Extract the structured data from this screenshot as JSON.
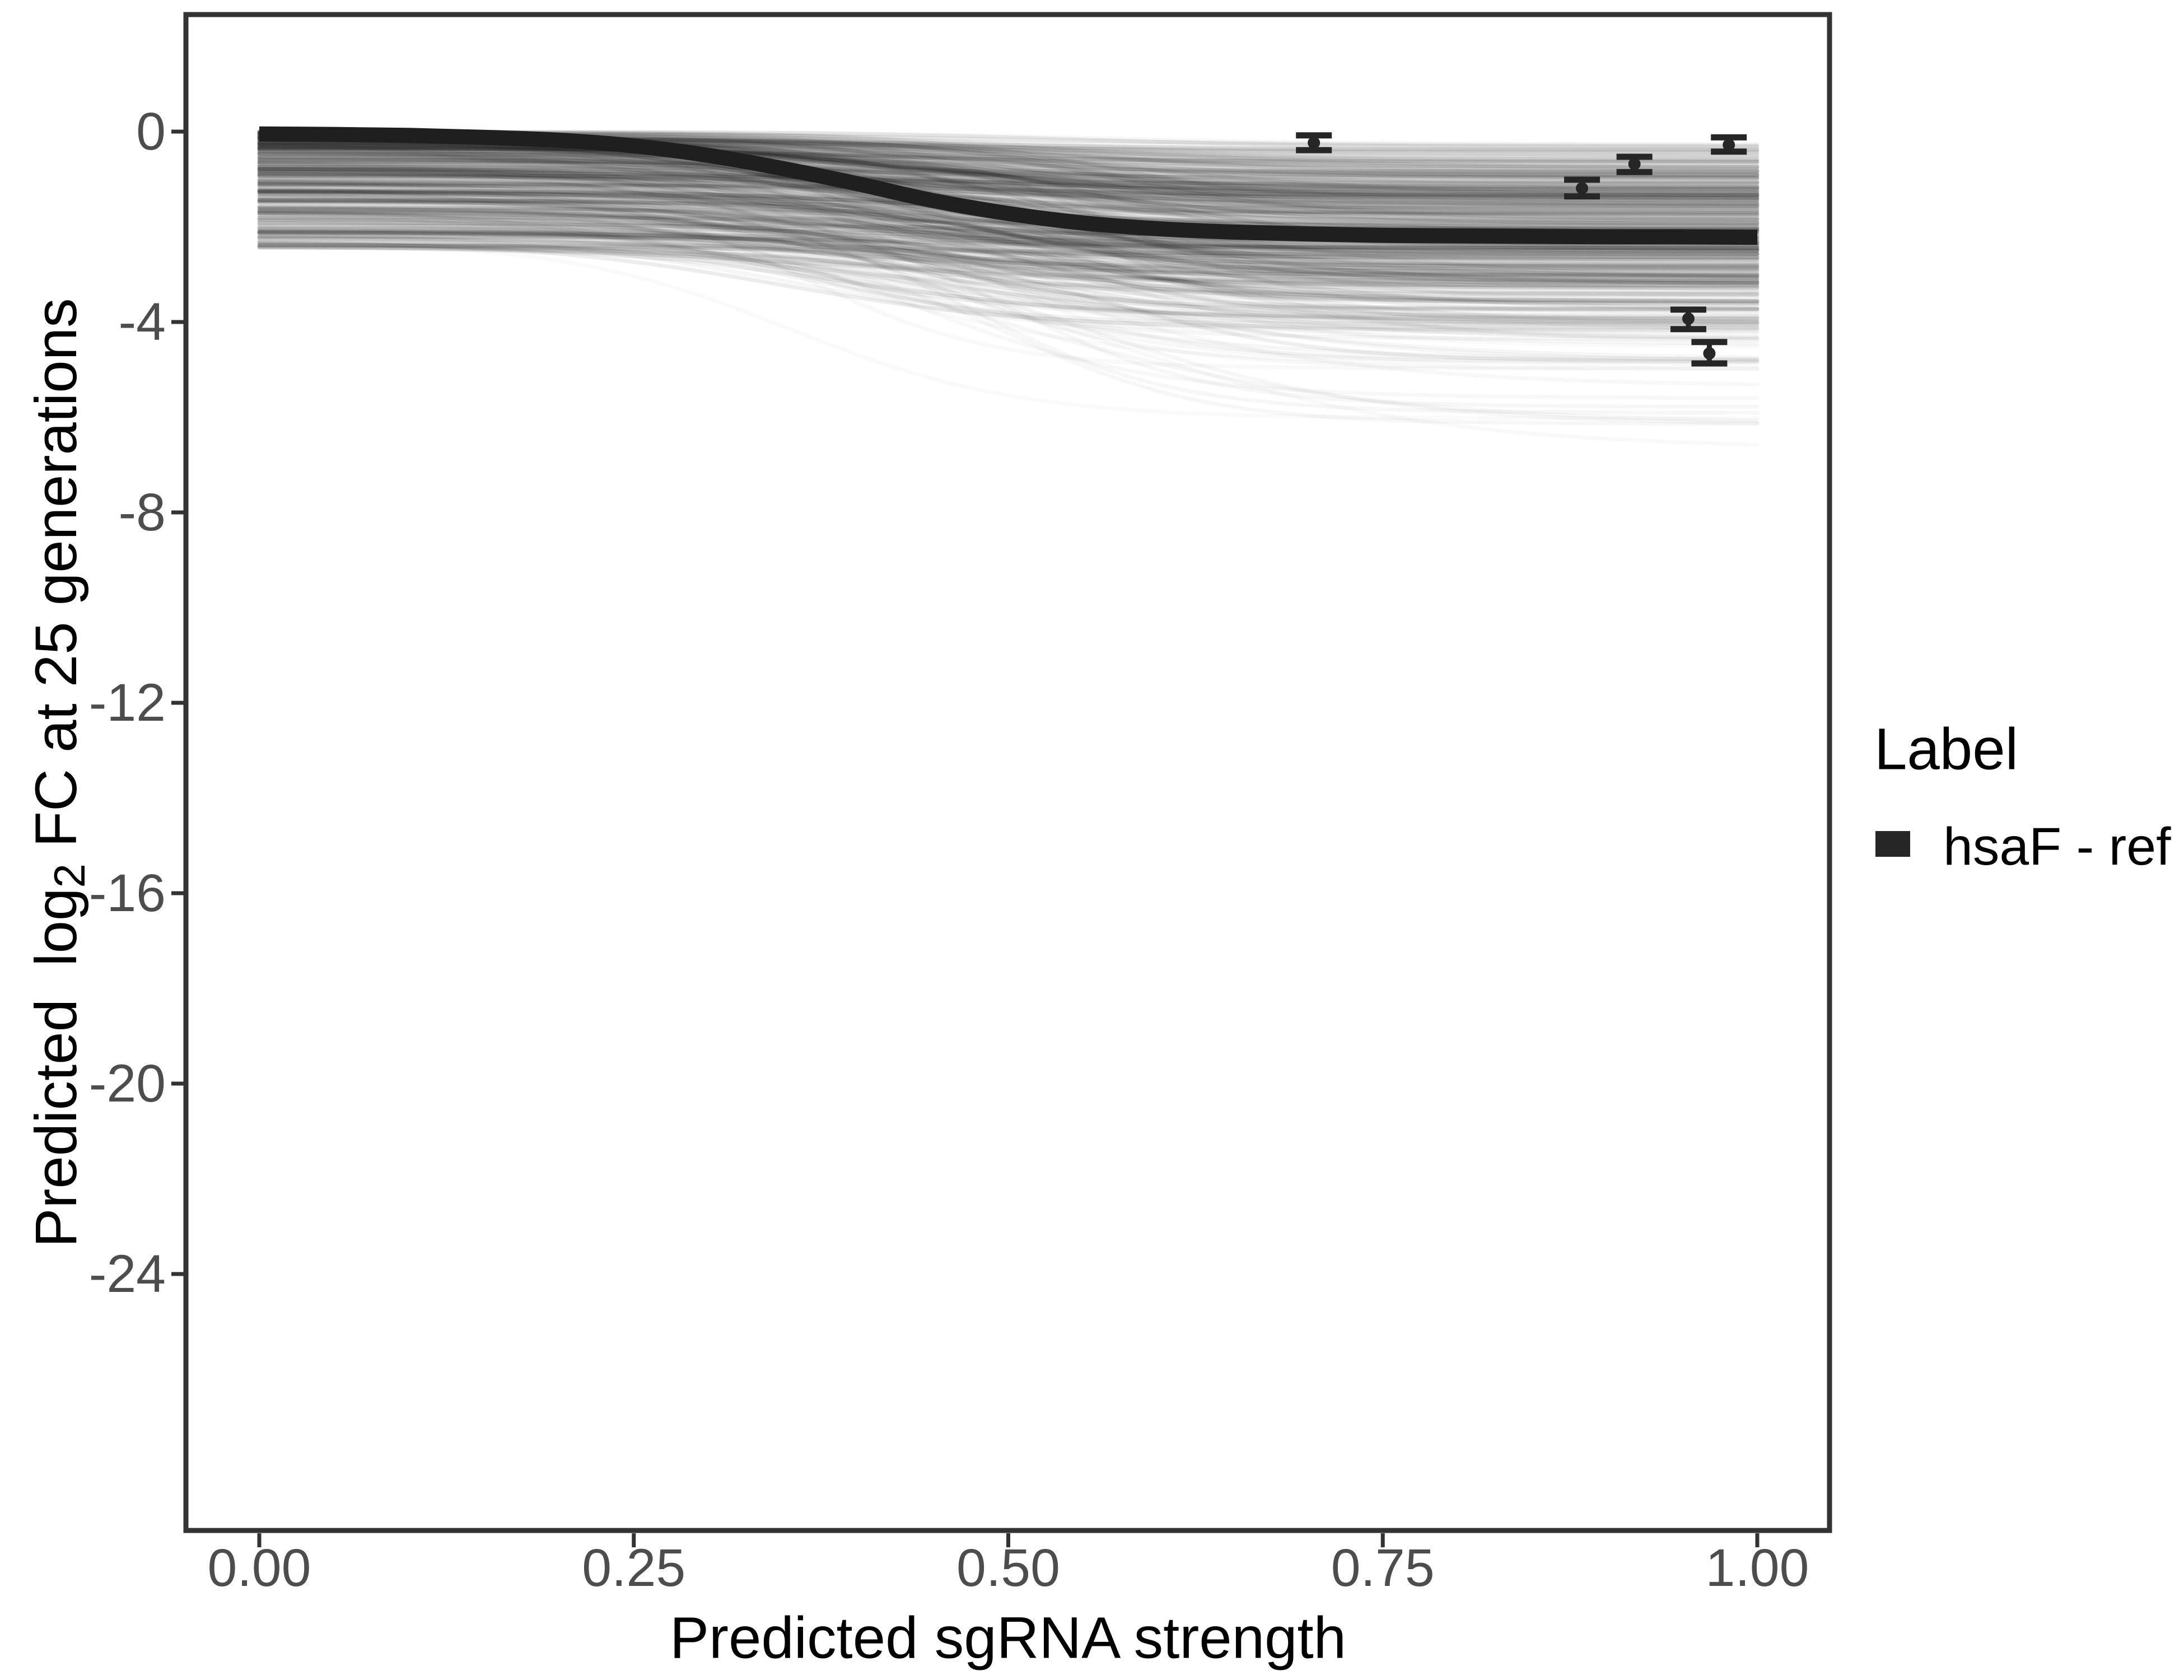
{
  "figure": {
    "background": "#ffffff"
  },
  "axes": {
    "x": {
      "title": "Predicted sgRNA strength",
      "range": [
        0,
        1
      ],
      "ticks": [
        {
          "label": "0.00",
          "value": 0.0
        },
        {
          "label": "0.25",
          "value": 0.25
        },
        {
          "label": "0.50",
          "value": 0.5
        },
        {
          "label": "0.75",
          "value": 0.75
        },
        {
          "label": "1.00",
          "value": 1.0
        }
      ]
    },
    "y": {
      "title_pre": "Predicted  log",
      "title_sub": "2",
      "title_post": " FC at 25 generations",
      "range": [
        2.6,
        -29.4
      ],
      "ticks": [
        {
          "label": "0",
          "value": 0
        },
        {
          "label": "-4",
          "value": -4
        },
        {
          "label": "-8",
          "value": -8
        },
        {
          "label": "-12",
          "value": -12
        },
        {
          "label": "-16",
          "value": -16
        },
        {
          "label": "-20",
          "value": -20
        },
        {
          "label": "-24",
          "value": -24
        }
      ]
    }
  },
  "legend": {
    "title": "Label",
    "items": [
      {
        "label": "hsaF - ref",
        "swatch_color": "#262626"
      }
    ]
  },
  "colors": {
    "panel_border": "#333333",
    "tick_mark": "#333333",
    "tick_text": "#4d4d4d",
    "axis_title": "#000000",
    "main_curve": "#1f1f1f",
    "ensemble_stroke": "#000000",
    "point_color": "#262626"
  },
  "chart_data": {
    "type": "line",
    "title": "",
    "xlabel": "Predicted sgRNA strength",
    "ylabel": "Predicted log2 FC at 25 generations",
    "xlim": [
      0,
      1
    ],
    "ylim": [
      -29.4,
      2.6
    ],
    "grid": "off",
    "legend_position": "right",
    "main_curve": {
      "name": "hsaF - ref",
      "points": [
        [
          0.0,
          -0.05
        ],
        [
          0.05,
          -0.06
        ],
        [
          0.1,
          -0.08
        ],
        [
          0.15,
          -0.12
        ],
        [
          0.2,
          -0.18
        ],
        [
          0.25,
          -0.3
        ],
        [
          0.3,
          -0.5
        ],
        [
          0.35,
          -0.78
        ],
        [
          0.4,
          -1.1
        ],
        [
          0.45,
          -1.45
        ],
        [
          0.5,
          -1.72
        ],
        [
          0.55,
          -1.92
        ],
        [
          0.6,
          -2.04
        ],
        [
          0.65,
          -2.11
        ],
        [
          0.7,
          -2.15
        ],
        [
          0.75,
          -2.18
        ],
        [
          0.8,
          -2.19
        ],
        [
          0.85,
          -2.2
        ],
        [
          0.9,
          -2.21
        ],
        [
          0.95,
          -2.21
        ],
        [
          1.0,
          -2.22
        ]
      ]
    },
    "points": [
      {
        "x": 0.704,
        "y": -0.235,
        "ymin": -0.39,
        "ymax": -0.08
      },
      {
        "x": 0.883,
        "y": -1.19,
        "ymin": -1.36,
        "ymax": -1.01
      },
      {
        "x": 0.918,
        "y": -0.68,
        "ymin": -0.85,
        "ymax": -0.53
      },
      {
        "x": 0.954,
        "y": -3.93,
        "ymin": -4.15,
        "ymax": -3.74
      },
      {
        "x": 0.968,
        "y": -4.66,
        "ymin": -4.87,
        "ymax": -4.42
      },
      {
        "x": 0.981,
        "y": -0.28,
        "ymin": -0.42,
        "ymax": -0.12
      }
    ],
    "ensemble": {
      "description": "translucent grey posterior-sample sigmoid curves forming the band",
      "count": 450,
      "seed": 42,
      "intercept_max": -2.45,
      "intercept_exp": 1.35,
      "drop_min": 0.25,
      "drop_max": 2.55,
      "drop_exp": 1.6,
      "deep_fraction": 0.09,
      "deep_drop_min": 2.3,
      "deep_drop_max": 4.6,
      "center_min": 0.33,
      "center_max": 0.58,
      "steepness_min": 8,
      "steepness_max": 16,
      "alpha_min": 0.025,
      "alpha_max": 0.07,
      "deep_alpha_min": 0.018,
      "deep_alpha_max": 0.035,
      "stroke_width": 7
    }
  }
}
